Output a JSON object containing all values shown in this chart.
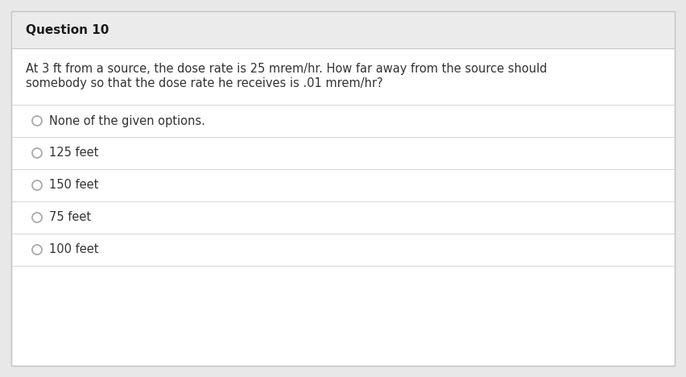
{
  "title": "Question 10",
  "question_line1": "At 3 ft from a source, the dose rate is 25 mrem/hr. How far away from the source should",
  "question_line2": "somebody so that the dose rate he receives is .01 mrem/hr?",
  "options": [
    "None of the given options.",
    "125 feet",
    "150 feet",
    "75 feet",
    "100 feet"
  ],
  "bg_outer": "#e8e8e8",
  "bg_inner": "#ffffff",
  "header_bg": "#ebebeb",
  "title_color": "#1a1a1a",
  "question_color": "#333333",
  "option_color": "#333333",
  "border_color": "#c8c8c8",
  "divider_color": "#d5d5d5",
  "circle_edge_color": "#aaaaaa",
  "title_fontsize": 11.0,
  "question_fontsize": 10.5,
  "option_fontsize": 10.5,
  "figw": 8.52,
  "figh": 4.68,
  "dpi": 100
}
